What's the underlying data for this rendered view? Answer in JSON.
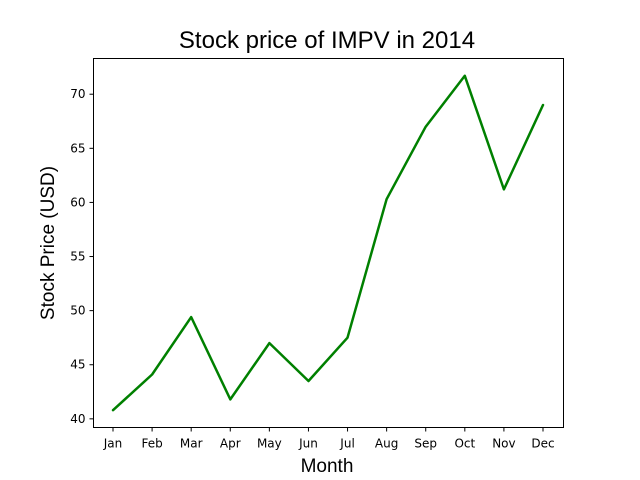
{
  "chart_data": {
    "type": "line",
    "title": "Stock price of IMPV in 2014",
    "xlabel": "Month",
    "ylabel": "Stock Price (USD)",
    "categories": [
      "Jan",
      "Feb",
      "Mar",
      "Apr",
      "May",
      "Jun",
      "Jul",
      "Aug",
      "Sep",
      "Oct",
      "Nov",
      "Dec"
    ],
    "series": [
      {
        "values": [
          40.8,
          44.1,
          49.4,
          41.8,
          47.0,
          43.5,
          47.5,
          60.3,
          67.0,
          71.7,
          61.2,
          69.0
        ],
        "color": "#008000"
      }
    ],
    "ylim": [
      39.2,
      73.3
    ],
    "yticks": [
      40,
      45,
      50,
      55,
      60,
      65,
      70
    ],
    "grid": false,
    "legend": "none"
  }
}
